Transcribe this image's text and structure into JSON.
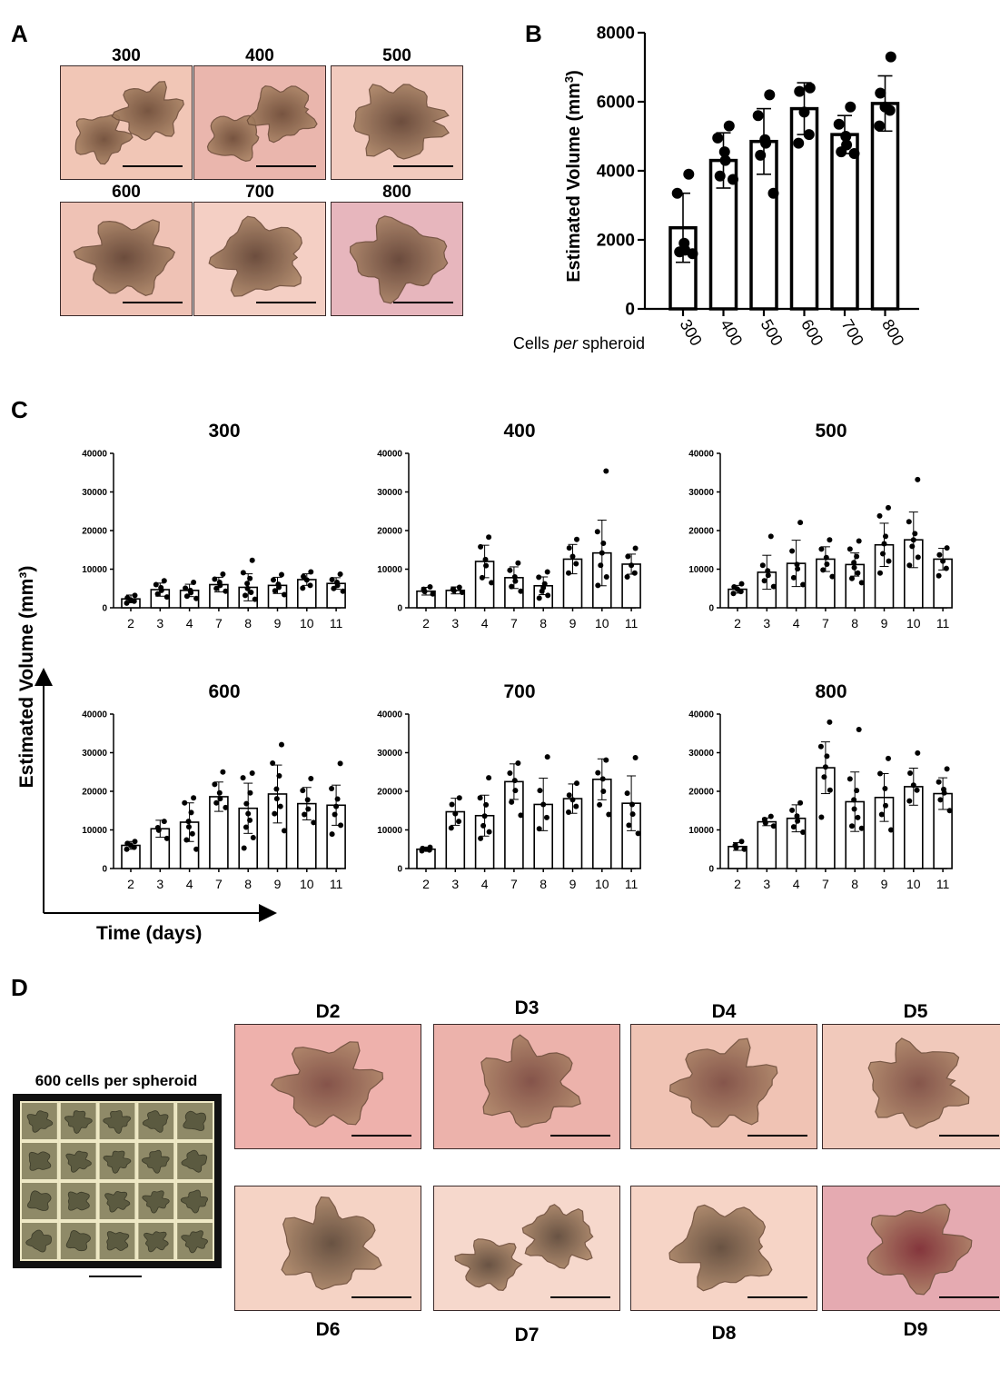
{
  "panels": {
    "a": {
      "letter": "A",
      "labels": [
        "300",
        "400",
        "500",
        "600",
        "700",
        "800"
      ],
      "colors": [
        "#f1c6b6",
        "#eab6ad",
        "#f2cabe",
        "#efc2b5",
        "#f4cfc4",
        "#e7b6bd"
      ]
    },
    "b": {
      "letter": "B",
      "x_caption_pre": "Cells ",
      "x_caption_italic": "per",
      "x_caption_post": " spheroid"
    },
    "c": {
      "letter": "C",
      "ylabel": "Estimated Volume (mm³)",
      "xlabel": "Time (days)"
    },
    "d": {
      "letter": "D",
      "grid_title": "600 cells per spheroid",
      "tiles_top": [
        {
          "label": "D2",
          "color": "#eeb1ac"
        },
        {
          "label": "D3",
          "color": "#ecb2ab"
        },
        {
          "label": "D4",
          "color": "#f0c3b4"
        },
        {
          "label": "D5",
          "color": "#f1c9bb"
        }
      ],
      "tiles_bottom": [
        {
          "label": "D6",
          "color": "#f5d3c5"
        },
        {
          "label": "D7",
          "color": "#f6d8cc"
        },
        {
          "label": "D8",
          "color": "#f6d4c6"
        },
        {
          "label": "D9",
          "color": "#e5aab1"
        }
      ]
    }
  },
  "chart_data": [
    {
      "id": "B",
      "type": "bar",
      "title": "",
      "xlabel": "Cells per spheroid",
      "ylabel": "Estimated Volume (mm³)",
      "ylim": [
        0,
        8000
      ],
      "yticks": [
        0,
        2000,
        4000,
        6000,
        8000
      ],
      "categories": [
        "300",
        "400",
        "500",
        "600",
        "700",
        "800"
      ],
      "values": [
        2350,
        4300,
        4850,
        5800,
        5050,
        5950
      ],
      "errors": [
        1000,
        800,
        950,
        750,
        550,
        800
      ],
      "points": [
        [
          3900,
          3350,
          1900,
          1700,
          1650,
          1600
        ],
        [
          5300,
          4950,
          4550,
          4300,
          3850,
          3750
        ],
        [
          6200,
          5600,
          4900,
          4800,
          4450,
          3350
        ],
        [
          6400,
          6300,
          5700,
          5050,
          4800
        ],
        [
          5850,
          5350,
          5000,
          4750,
          4550,
          4500
        ],
        [
          7300,
          6250,
          5850,
          5750,
          5300
        ]
      ]
    },
    {
      "id": "C-300",
      "type": "bar",
      "title": "300",
      "ylim": [
        0,
        40000
      ],
      "yticks": [
        0,
        10000,
        20000,
        30000,
        40000
      ],
      "categories": [
        "2",
        "3",
        "4",
        "7",
        "8",
        "9",
        "10",
        "11"
      ],
      "values": [
        2300,
        4700,
        4500,
        6000,
        5300,
        5800,
        7300,
        6300
      ],
      "errors": [
        1000,
        1700,
        1600,
        1900,
        3500,
        2100,
        1500,
        1500
      ],
      "points": [
        [
          3200,
          2600,
          2000,
          1700,
          1200
        ],
        [
          7000,
          6000,
          5200,
          4500,
          3600,
          2800
        ],
        [
          6600,
          5100,
          4500,
          3900,
          3000,
          2400
        ],
        [
          8700,
          7400,
          6600,
          5800,
          5000,
          4300
        ],
        [
          12300,
          9100,
          7600,
          6300,
          5000,
          4000,
          3200,
          2200
        ],
        [
          8600,
          7200,
          6100,
          5300,
          4400,
          3400
        ],
        [
          9300,
          8100,
          7200,
          5800,
          5100
        ],
        [
          8700,
          7300,
          6600,
          5800,
          5000,
          4300
        ]
      ]
    },
    {
      "id": "C-400",
      "type": "bar",
      "title": "400",
      "ylim": [
        0,
        40000
      ],
      "yticks": [
        0,
        10000,
        20000,
        30000,
        40000
      ],
      "categories": [
        "2",
        "3",
        "4",
        "7",
        "8",
        "9",
        "10",
        "11"
      ],
      "values": [
        4300,
        4500,
        12000,
        7800,
        5700,
        12600,
        14200,
        11300
      ],
      "errors": [
        1000,
        900,
        4200,
        2800,
        2300,
        3800,
        8500,
        2600
      ],
      "points": [
        [
          5400,
          4800,
          4200,
          3600
        ],
        [
          5300,
          4800,
          4400,
          4000
        ],
        [
          18300,
          15800,
          12500,
          10900,
          7800,
          6500
        ],
        [
          11600,
          9700,
          8000,
          6900,
          5500,
          4300
        ],
        [
          9300,
          7900,
          6200,
          5200,
          4300,
          3200,
          2500
        ],
        [
          17700,
          15500,
          13300,
          11400,
          9000
        ],
        [
          35400,
          19700,
          16700,
          14200,
          11000,
          8000,
          5800
        ],
        [
          15400,
          13300,
          11000,
          9000,
          8000
        ]
      ]
    },
    {
      "id": "C-500",
      "type": "bar",
      "title": "500",
      "ylim": [
        0,
        40000
      ],
      "yticks": [
        0,
        10000,
        20000,
        30000,
        40000
      ],
      "categories": [
        "2",
        "3",
        "4",
        "7",
        "8",
        "9",
        "10",
        "11"
      ],
      "values": [
        4800,
        9200,
        11500,
        12600,
        11200,
        16300,
        17600,
        12600
      ],
      "errors": [
        1000,
        4400,
        6000,
        3200,
        3000,
        5600,
        7200,
        2800
      ],
      "points": [
        [
          6200,
          5400,
          4800,
          4200,
          3700
        ],
        [
          18500,
          11000,
          9600,
          8400,
          7000,
          5500
        ],
        [
          22100,
          14700,
          11200,
          10100,
          7800,
          6000
        ],
        [
          17600,
          15200,
          13000,
          11300,
          9800,
          8100
        ],
        [
          17300,
          15200,
          13300,
          11700,
          10400,
          9000,
          7600,
          6500
        ],
        [
          25900,
          23800,
          18500,
          16600,
          14000,
          12100,
          9000
        ],
        [
          33200,
          22300,
          19200,
          17600,
          15900,
          13100,
          11000
        ],
        [
          15500,
          13700,
          12100,
          10200,
          8300
        ]
      ]
    },
    {
      "id": "C-600",
      "type": "bar",
      "title": "600",
      "ylim": [
        0,
        40000
      ],
      "yticks": [
        0,
        10000,
        20000,
        30000,
        40000
      ],
      "categories": [
        "2",
        "3",
        "4",
        "7",
        "8",
        "9",
        "10",
        "11"
      ],
      "values": [
        6000,
        10300,
        12000,
        18600,
        15600,
        19300,
        16800,
        16400
      ],
      "errors": [
        1000,
        2200,
        5000,
        3800,
        6500,
        7500,
        4200,
        5200
      ],
      "points": [
        [
          7000,
          6500,
          6000,
          5500,
          5000
        ],
        [
          12200,
          10600,
          9900,
          7800
        ],
        [
          18300,
          17000,
          14500,
          12200,
          10800,
          9000,
          7400,
          5000
        ],
        [
          25000,
          21800,
          19600,
          18100,
          17000,
          15800
        ],
        [
          24700,
          23500,
          19600,
          16800,
          14200,
          12500,
          10700,
          8000,
          5300
        ],
        [
          32100,
          27300,
          24000,
          20600,
          18100,
          16100,
          14200,
          9800
        ],
        [
          23300,
          20200,
          17800,
          15400,
          14000,
          11900
        ],
        [
          27200,
          20700,
          18000,
          16100,
          14000,
          11200,
          8900
        ]
      ]
    },
    {
      "id": "C-700",
      "type": "bar",
      "title": "700",
      "ylim": [
        0,
        40000
      ],
      "yticks": [
        0,
        10000,
        20000,
        30000,
        40000
      ],
      "categories": [
        "2",
        "3",
        "4",
        "7",
        "8",
        "9",
        "10",
        "11"
      ],
      "values": [
        5000,
        14700,
        13700,
        22500,
        16600,
        18100,
        23100,
        16900
      ],
      "errors": [
        500,
        3500,
        5300,
        4600,
        6800,
        3800,
        5300,
        7100
      ],
      "points": [
        [
          5500,
          5200,
          5000,
          4800,
          4600
        ],
        [
          18300,
          16600,
          14200,
          12200,
          10500
        ],
        [
          23500,
          18300,
          16500,
          13600,
          11100,
          9500,
          7800
        ],
        [
          27300,
          24700,
          22800,
          20200,
          17200,
          13800
        ],
        [
          28900,
          20200,
          16600,
          13200,
          10300
        ],
        [
          22100,
          19000,
          17800,
          16100,
          14600
        ],
        [
          28100,
          24800,
          23200,
          20000,
          16500,
          14000
        ],
        [
          28700,
          19500,
          16600,
          14100,
          11200,
          9100
        ]
      ]
    },
    {
      "id": "C-800",
      "type": "bar",
      "title": "800",
      "ylim": [
        0,
        40000
      ],
      "yticks": [
        0,
        10000,
        20000,
        30000,
        40000
      ],
      "categories": [
        "2",
        "3",
        "4",
        "7",
        "8",
        "9",
        "10",
        "11"
      ],
      "values": [
        5700,
        12100,
        13000,
        26100,
        17300,
        18400,
        21200,
        19400
      ],
      "errors": [
        1000,
        1000,
        3500,
        6700,
        7700,
        6200,
        4800,
        4100
      ],
      "points": [
        [
          7000,
          6000,
          5400,
          5000
        ],
        [
          13500,
          12700,
          11800,
          11000
        ],
        [
          17000,
          15100,
          13600,
          12300,
          10800,
          9400
        ],
        [
          37900,
          31600,
          29100,
          26300,
          23700,
          20300,
          13300
        ],
        [
          36000,
          23200,
          20200,
          17800,
          15400,
          13200,
          11000,
          10400
        ],
        [
          28500,
          24600,
          20700,
          16300,
          14000,
          10000
        ],
        [
          29900,
          24700,
          21600,
          20300,
          17500
        ],
        [
          25800,
          22400,
          20500,
          19600,
          17800,
          15000
        ]
      ]
    }
  ]
}
